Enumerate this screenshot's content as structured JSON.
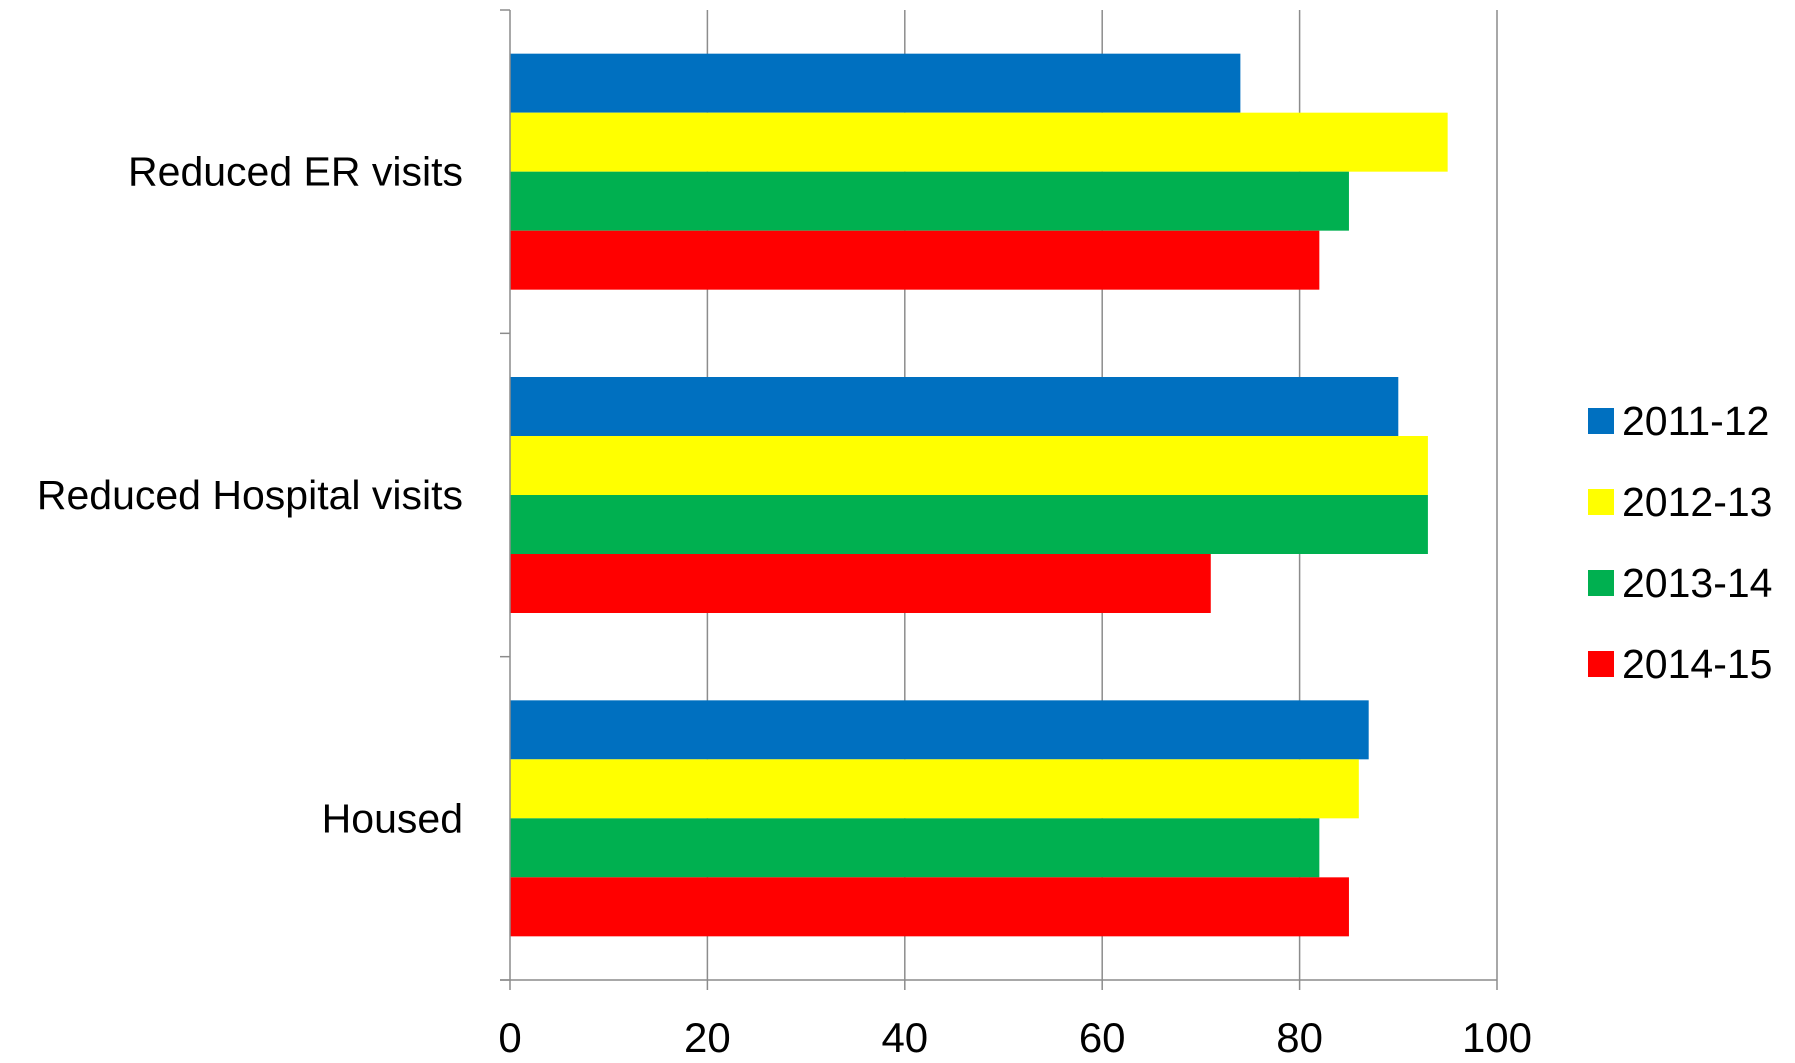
{
  "chart_data": {
    "type": "bar",
    "orientation": "horizontal",
    "title": "",
    "xlabel": "",
    "ylabel": "",
    "categories": [
      "Reduced ER visits",
      "Reduced Hospital visits",
      "Housed"
    ],
    "series": [
      {
        "name": "2011-12",
        "color": "#0070C0",
        "values": [
          74,
          90,
          87
        ]
      },
      {
        "name": "2012-13",
        "color": "#FFFF00",
        "values": [
          95,
          93,
          86
        ]
      },
      {
        "name": "2013-14",
        "color": "#00B050",
        "values": [
          85,
          93,
          82
        ]
      },
      {
        "name": "2014-15",
        "color": "#FF0000",
        "values": [
          82,
          71,
          85
        ]
      }
    ],
    "xlim": [
      0,
      100
    ],
    "xticks": [
      0,
      20,
      40,
      60,
      80,
      100
    ],
    "grid": true,
    "legend_position": "right"
  }
}
